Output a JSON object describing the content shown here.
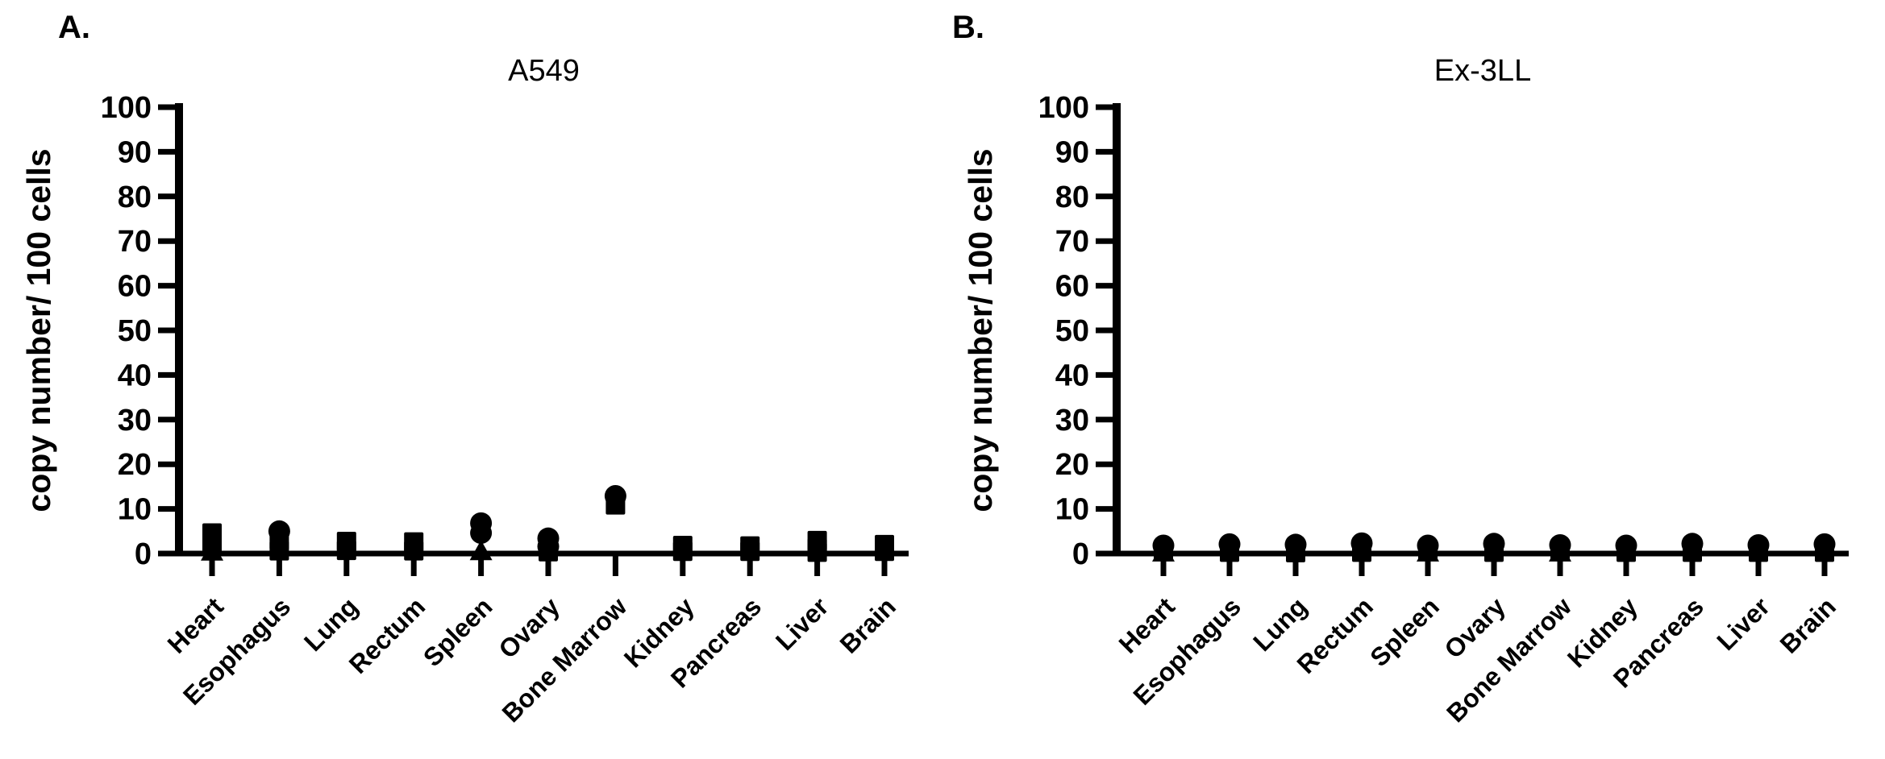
{
  "figure": {
    "background_color": "#ffffff",
    "ink_color": "#000000"
  },
  "chart_data": [
    {
      "type": "scatter",
      "panel_label": "A.",
      "title": "A549",
      "ylabel": "copy number/ 100 cells",
      "xlabel": "",
      "ylim": [
        0,
        100
      ],
      "yticks": [
        0,
        10,
        20,
        30,
        40,
        50,
        60,
        70,
        80,
        90,
        100
      ],
      "grid": false,
      "legend": "none",
      "marker_color": "#000000",
      "axis_color": "#000000",
      "categories": [
        "Heart",
        "Esophagus",
        "Lung",
        "Rectum",
        "Spleen",
        "Ovary",
        "Bone Marrow",
        "Kidney",
        "Pancreas",
        "Liver",
        "Brain"
      ],
      "points_by_category": [
        [
          {
            "shape": "square",
            "value": 4.6
          },
          {
            "shape": "square",
            "value": 2.4
          },
          {
            "shape": "triangle",
            "value": 0.4
          }
        ],
        [
          {
            "shape": "circle",
            "value": 5.0
          },
          {
            "shape": "square",
            "value": 3.0
          },
          {
            "shape": "square",
            "value": 0.6
          }
        ],
        [
          {
            "shape": "square",
            "value": 2.7
          },
          {
            "shape": "square",
            "value": 0.7
          }
        ],
        [
          {
            "shape": "square",
            "value": 2.6
          },
          {
            "shape": "square",
            "value": 0.6
          }
        ],
        [
          {
            "shape": "circle",
            "value": 6.8
          },
          {
            "shape": "circle",
            "value": 4.6
          },
          {
            "shape": "triangle",
            "value": 0.5
          }
        ],
        [
          {
            "shape": "circle",
            "value": 3.4
          },
          {
            "shape": "circle",
            "value": 1.6
          },
          {
            "shape": "square",
            "value": 0.4
          }
        ],
        [
          {
            "shape": "circle",
            "value": 12.9
          },
          {
            "shape": "square",
            "value": 10.9
          }
        ],
        [
          {
            "shape": "square",
            "value": 1.8
          },
          {
            "shape": "square",
            "value": 0.5
          }
        ],
        [
          {
            "shape": "square",
            "value": 1.7
          },
          {
            "shape": "square",
            "value": 0.5
          }
        ],
        [
          {
            "shape": "square",
            "value": 2.9
          },
          {
            "shape": "square",
            "value": 1.2
          },
          {
            "shape": "square",
            "value": 0.3
          }
        ],
        [
          {
            "shape": "square",
            "value": 2.0
          },
          {
            "shape": "square",
            "value": 0.5
          }
        ]
      ]
    },
    {
      "type": "scatter",
      "panel_label": "B.",
      "title": "Ex-3LL",
      "ylabel": "copy number/ 100 cells",
      "xlabel": "",
      "ylim": [
        0,
        100
      ],
      "yticks": [
        0,
        10,
        20,
        30,
        40,
        50,
        60,
        70,
        80,
        90,
        100
      ],
      "grid": false,
      "legend": "none",
      "marker_color": "#000000",
      "axis_color": "#000000",
      "categories": [
        "Heart",
        "Esophagus",
        "Lung",
        "Rectum",
        "Spleen",
        "Ovary",
        "Bone Marrow",
        "Kidney",
        "Pancreas",
        "Liver",
        "Brain"
      ],
      "points_by_category": [
        [
          {
            "shape": "circle",
            "value": 1.8
          },
          {
            "shape": "square",
            "value": 0.8
          },
          {
            "shape": "triangle",
            "value": 0.2
          }
        ],
        [
          {
            "shape": "circle",
            "value": 2.1
          },
          {
            "shape": "square",
            "value": 1.0
          },
          {
            "shape": "square",
            "value": 0.3
          }
        ],
        [
          {
            "shape": "circle",
            "value": 2.0
          },
          {
            "shape": "square",
            "value": 0.9
          },
          {
            "shape": "square",
            "value": 0.2
          }
        ],
        [
          {
            "shape": "circle",
            "value": 2.3
          },
          {
            "shape": "square",
            "value": 1.1
          },
          {
            "shape": "square",
            "value": 0.3
          }
        ],
        [
          {
            "shape": "circle",
            "value": 1.8
          },
          {
            "shape": "square",
            "value": 0.8
          },
          {
            "shape": "triangle",
            "value": 0.2
          }
        ],
        [
          {
            "shape": "circle",
            "value": 2.2
          },
          {
            "shape": "square",
            "value": 1.0
          },
          {
            "shape": "square",
            "value": 0.3
          }
        ],
        [
          {
            "shape": "circle",
            "value": 1.9
          },
          {
            "shape": "square",
            "value": 0.9
          },
          {
            "shape": "triangle",
            "value": 0.2
          }
        ],
        [
          {
            "shape": "circle",
            "value": 1.8
          },
          {
            "shape": "square",
            "value": 0.9
          },
          {
            "shape": "square",
            "value": 0.3
          }
        ],
        [
          {
            "shape": "circle",
            "value": 2.2
          },
          {
            "shape": "square",
            "value": 1.1
          },
          {
            "shape": "square",
            "value": 0.3
          }
        ],
        [
          {
            "shape": "circle",
            "value": 1.9
          },
          {
            "shape": "square",
            "value": 0.9
          },
          {
            "shape": "square",
            "value": 0.3
          }
        ],
        [
          {
            "shape": "circle",
            "value": 2.1
          },
          {
            "shape": "square",
            "value": 1.0
          },
          {
            "shape": "square",
            "value": 0.3
          }
        ]
      ]
    }
  ]
}
